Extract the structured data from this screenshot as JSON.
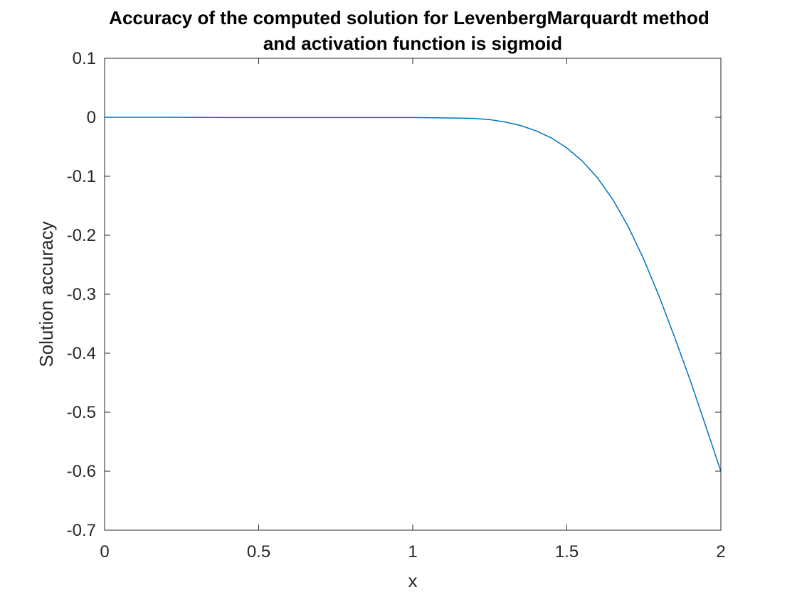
{
  "chart_data": {
    "type": "line",
    "title": [
      "Accuracy of the computed solution for LevenbergMarquardt method",
      "and activation function is sigmoid"
    ],
    "xlabel": "x",
    "ylabel": "Solution accuracy",
    "xlim": [
      0,
      2
    ],
    "ylim": [
      -0.7,
      0.1
    ],
    "xticks": [
      0,
      0.5,
      1,
      1.5,
      2
    ],
    "xtick_labels": [
      "0",
      "0.5",
      "1",
      "1.5",
      "2"
    ],
    "yticks": [
      -0.7,
      -0.6,
      -0.5,
      -0.4,
      -0.3,
      -0.2,
      -0.1,
      0,
      0.1
    ],
    "ytick_labels": [
      "-0.7",
      "-0.6",
      "-0.5",
      "-0.4",
      "-0.3",
      "-0.2",
      "-0.1",
      "0",
      "0.1"
    ],
    "grid": false,
    "series": [
      {
        "color": "#0072BD",
        "x": [
          0,
          0.2,
          0.4,
          0.6,
          0.8,
          1.0,
          1.1,
          1.2,
          1.25,
          1.3,
          1.35,
          1.4,
          1.45,
          1.5,
          1.55,
          1.6,
          1.65,
          1.7,
          1.75,
          1.8,
          1.85,
          1.9,
          1.95,
          2.0
        ],
        "y": [
          0,
          0,
          -0.0005,
          -0.0005,
          -0.0005,
          -0.0005,
          -0.001,
          -0.002,
          -0.004,
          -0.008,
          -0.014,
          -0.023,
          -0.035,
          -0.052,
          -0.074,
          -0.103,
          -0.14,
          -0.186,
          -0.241,
          -0.304,
          -0.373,
          -0.445,
          -0.522,
          -0.6
        ]
      }
    ]
  }
}
